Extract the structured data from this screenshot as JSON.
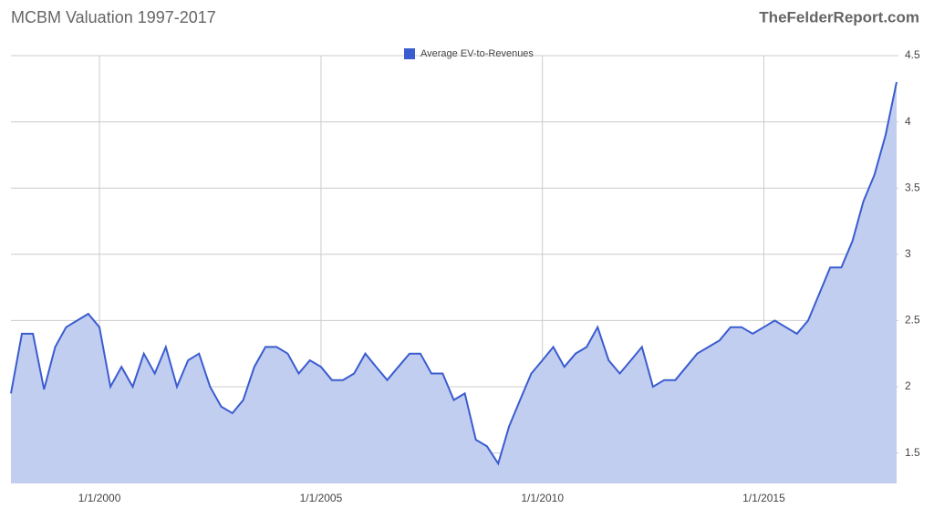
{
  "chart_data": {
    "type": "area",
    "title": "MCBM Valuation 1997-2017",
    "source": "TheFelderReport.com",
    "legend": "top",
    "grid": true,
    "x": [
      "1/1/1998",
      "4/1/1998",
      "7/1/1998",
      "10/1/1998",
      "1/1/1999",
      "4/1/1999",
      "7/1/1999",
      "10/1/1999",
      "1/1/2000",
      "4/1/2000",
      "7/1/2000",
      "10/1/2000",
      "1/1/2001",
      "4/1/2001",
      "7/1/2001",
      "10/1/2001",
      "1/1/2002",
      "4/1/2002",
      "7/1/2002",
      "10/1/2002",
      "1/1/2003",
      "4/1/2003",
      "7/1/2003",
      "10/1/2003",
      "1/1/2004",
      "4/1/2004",
      "7/1/2004",
      "10/1/2004",
      "1/1/2005",
      "4/1/2005",
      "7/1/2005",
      "10/1/2005",
      "1/1/2006",
      "4/1/2006",
      "7/1/2006",
      "10/1/2006",
      "1/1/2007",
      "4/1/2007",
      "7/1/2007",
      "10/1/2007",
      "1/1/2008",
      "4/1/2008",
      "7/1/2008",
      "10/1/2008",
      "1/1/2009",
      "4/1/2009",
      "7/1/2009",
      "10/1/2009",
      "1/1/2010",
      "4/1/2010",
      "7/1/2010",
      "10/1/2010",
      "1/1/2011",
      "4/1/2011",
      "7/1/2011",
      "10/1/2011",
      "1/1/2012",
      "4/1/2012",
      "7/1/2012",
      "10/1/2012",
      "1/1/2013",
      "4/1/2013",
      "7/1/2013",
      "10/1/2013",
      "1/1/2014",
      "4/1/2014",
      "7/1/2014",
      "10/1/2014",
      "1/1/2015",
      "4/1/2015",
      "7/1/2015",
      "10/1/2015",
      "1/1/2016",
      "4/1/2016",
      "7/1/2016",
      "10/1/2016",
      "1/1/2017",
      "4/1/2017",
      "7/1/2017",
      "10/1/2017",
      "12/31/2017"
    ],
    "series": [
      {
        "name": "Average EV-to-Revenues",
        "color": "#3a5ccf",
        "fill": "#c2cef0",
        "values": [
          1.95,
          2.4,
          2.4,
          1.98,
          2.3,
          2.45,
          2.5,
          2.55,
          2.45,
          2.0,
          2.15,
          2.0,
          2.25,
          2.1,
          2.3,
          2.0,
          2.2,
          2.25,
          2.0,
          1.85,
          1.8,
          1.9,
          2.15,
          2.3,
          2.3,
          2.25,
          2.1,
          2.2,
          2.15,
          2.05,
          2.05,
          2.1,
          2.25,
          2.15,
          2.05,
          2.15,
          2.25,
          2.25,
          2.1,
          2.1,
          1.9,
          1.95,
          1.6,
          1.55,
          1.42,
          1.7,
          1.9,
          2.1,
          2.2,
          2.3,
          2.15,
          2.25,
          2.3,
          2.45,
          2.2,
          2.1,
          2.2,
          2.3,
          2.0,
          2.05,
          2.05,
          2.15,
          2.25,
          2.3,
          2.35,
          2.45,
          2.45,
          2.4,
          2.45,
          2.5,
          2.45,
          2.4,
          2.5,
          2.7,
          2.9,
          2.9,
          3.1,
          3.4,
          3.6,
          3.9,
          4.3
        ]
      }
    ],
    "xlim": [
      "1/1/1998",
      "1/15/2018"
    ],
    "xticks": [
      "1/1/2000",
      "1/1/2005",
      "1/1/2010",
      "1/1/2015"
    ],
    "ylim": [
      1.27,
      4.5
    ],
    "yticks": [
      1.5,
      2,
      2.5,
      3,
      3.5,
      4,
      4.5
    ]
  }
}
